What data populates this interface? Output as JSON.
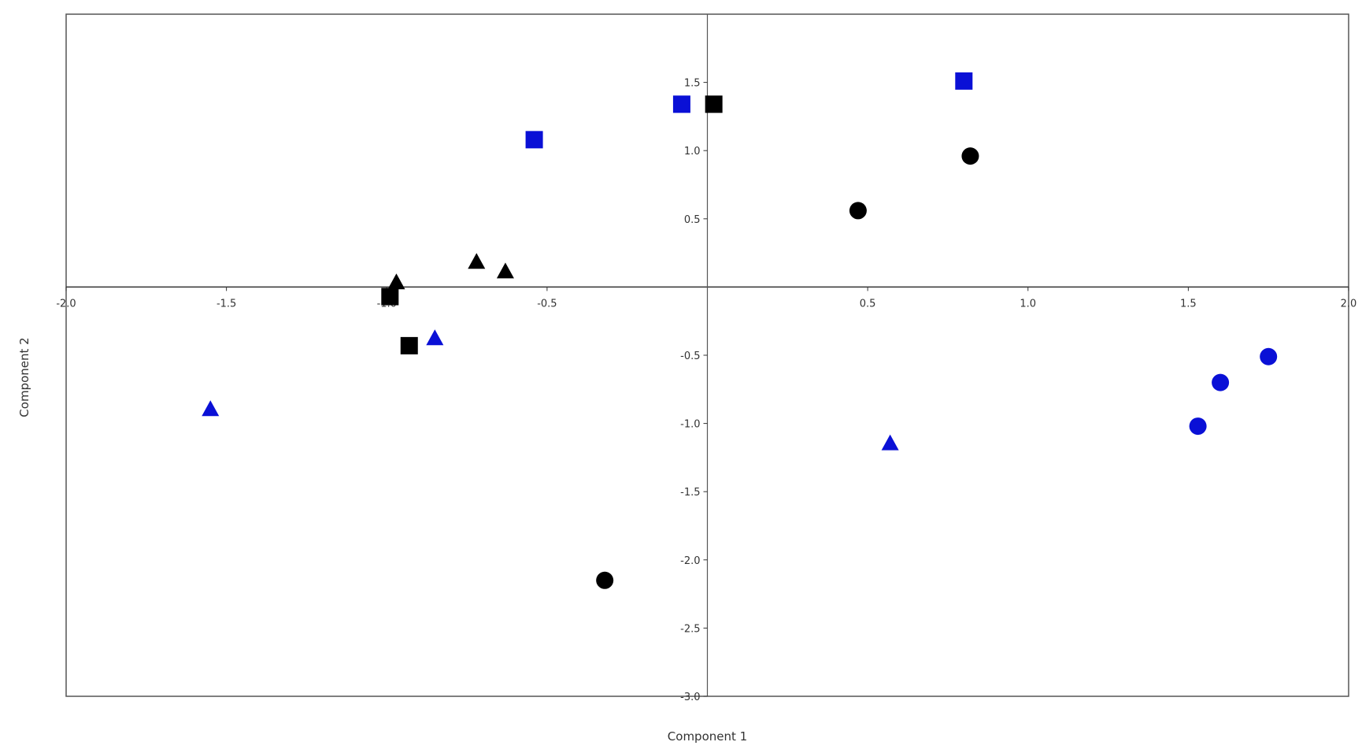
{
  "chart_data": {
    "type": "scatter",
    "title": "",
    "xlabel": "Component 1",
    "ylabel": "Component 2",
    "xlim": [
      -2.0,
      2.0
    ],
    "ylim": [
      -3.0,
      2.0
    ],
    "x_ticks": [
      "-2.0",
      "-1.5",
      "-1.0",
      "-0.5",
      "0.5",
      "1.0",
      "1.5",
      "2.0"
    ],
    "x_tick_values": [
      -2.0,
      -1.5,
      -1.0,
      -0.5,
      0.5,
      1.0,
      1.5,
      2.0
    ],
    "y_ticks": [
      "1.5",
      "1.0",
      "0.5",
      "-0.5",
      "-1.0",
      "-1.5",
      "-2.0",
      "-2.5",
      "-3.0"
    ],
    "y_tick_values": [
      1.5,
      1.0,
      0.5,
      -0.5,
      -1.0,
      -1.5,
      -2.0,
      -2.5,
      -3.0
    ],
    "grid": false,
    "axes_through_origin": true,
    "colors": {
      "black": "#000000",
      "blue": "#0a10d6"
    },
    "series": [
      {
        "marker": "square",
        "color": "black",
        "points": [
          [
            0.02,
            1.34
          ],
          [
            -0.99,
            -0.07
          ],
          [
            -0.93,
            -0.43
          ]
        ]
      },
      {
        "marker": "square",
        "color": "blue",
        "points": [
          [
            0.8,
            1.51
          ],
          [
            -0.08,
            1.34
          ],
          [
            -0.54,
            1.08
          ]
        ]
      },
      {
        "marker": "circle",
        "color": "black",
        "points": [
          [
            0.82,
            0.96
          ],
          [
            0.47,
            0.56
          ],
          [
            -0.32,
            -2.15
          ]
        ]
      },
      {
        "marker": "circle",
        "color": "blue",
        "points": [
          [
            1.75,
            -0.51
          ],
          [
            1.6,
            -0.7
          ],
          [
            1.53,
            -1.02
          ]
        ]
      },
      {
        "marker": "triangle",
        "color": "black",
        "points": [
          [
            -0.72,
            0.18
          ],
          [
            -0.63,
            0.11
          ],
          [
            -0.97,
            0.03
          ]
        ]
      },
      {
        "marker": "triangle",
        "color": "blue",
        "points": [
          [
            -0.85,
            -0.38
          ],
          [
            -1.55,
            -0.9
          ],
          [
            0.57,
            -1.15
          ]
        ]
      }
    ]
  }
}
